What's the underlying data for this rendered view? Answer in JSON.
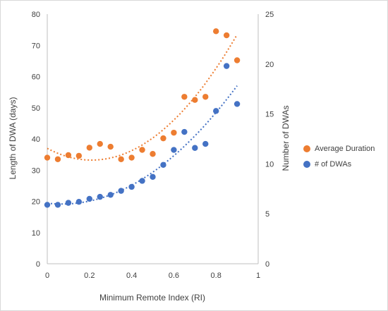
{
  "chart_data": {
    "type": "scatter",
    "title": "",
    "xlabel": "Minimum Remote Index (RI)",
    "ylabel_left": "Length of DWA (days)",
    "ylabel_right": "Number of DWAs",
    "xlim": [
      0,
      1
    ],
    "ylim_left": [
      0,
      80
    ],
    "ylim_right": [
      0,
      25
    ],
    "x_ticks": [
      "0",
      "0.2",
      "0.4",
      "0.6",
      "0.8",
      "1"
    ],
    "y_left_ticks": [
      "0",
      "10",
      "20",
      "30",
      "40",
      "50",
      "60",
      "70",
      "80"
    ],
    "y_right_ticks": [
      "0",
      "5",
      "10",
      "15",
      "20",
      "25"
    ],
    "grid": false,
    "legend_position": "right",
    "series": [
      {
        "name": "Average Duration",
        "axis": "left",
        "color": "#ED7D31",
        "trendline": "polynomial",
        "x": [
          0,
          0.05,
          0.1,
          0.15,
          0.2,
          0.25,
          0.3,
          0.35,
          0.4,
          0.45,
          0.5,
          0.55,
          0.6,
          0.65,
          0.7,
          0.75,
          0.8,
          0.85,
          0.9
        ],
        "y": [
          34,
          33.5,
          34.8,
          34.6,
          37.2,
          38.4,
          37.5,
          33.5,
          34,
          36.5,
          35.2,
          40.2,
          42,
          53.5,
          52.5,
          53.5,
          74.5,
          73.2,
          65.2
        ]
      },
      {
        "name": "# of DWAs",
        "axis": "right",
        "color": "#4472C4",
        "trendline": "polynomial",
        "x": [
          0,
          0.05,
          0.1,
          0.15,
          0.2,
          0.25,
          0.3,
          0.35,
          0.4,
          0.45,
          0.5,
          0.55,
          0.6,
          0.65,
          0.7,
          0.75,
          0.8,
          0.85,
          0.9
        ],
        "y": [
          5.9,
          5.9,
          6.1,
          6.2,
          6.5,
          6.7,
          6.9,
          7.3,
          7.7,
          8.3,
          8.7,
          9.9,
          11.4,
          13.2,
          11.6,
          12,
          15.3,
          19.8,
          16
        ]
      }
    ]
  }
}
